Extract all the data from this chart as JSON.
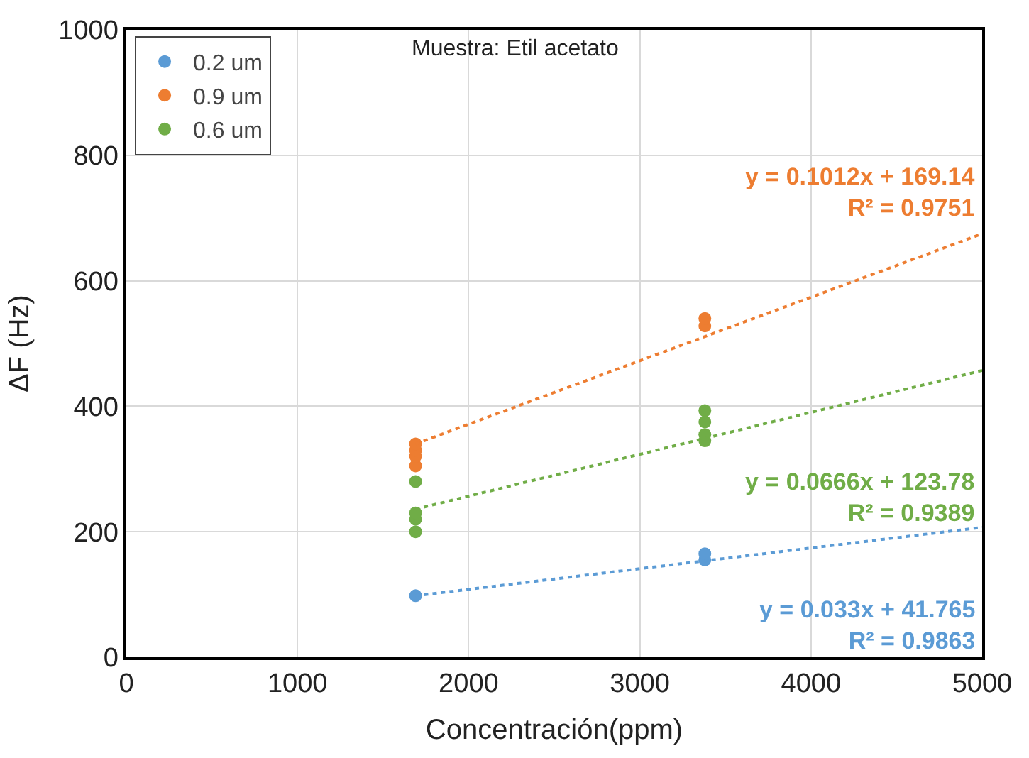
{
  "chart_data": {
    "type": "scatter",
    "xlabel": "Concentración(ppm)",
    "ylabel": "ΔF (Hz)",
    "xlim": [
      0,
      5000
    ],
    "xticks": [
      0,
      1000,
      2000,
      3000,
      4000,
      5000
    ],
    "ylim": [
      0,
      1000
    ],
    "yticks": [
      0,
      200,
      400,
      600,
      800,
      1000
    ],
    "grid": true,
    "legend": "top left",
    "series": [
      {
        "name": "0.2 um",
        "color": "#5b9bd5",
        "marker": "circle",
        "x": [
          1690,
          3380,
          3380
        ],
        "values": [
          98,
          155,
          165
        ]
      },
      {
        "name": "0.9 um",
        "color": "#ed7d31",
        "marker": "circle",
        "x": [
          1690,
          1690,
          1690,
          1690,
          3380,
          3380
        ],
        "values": [
          305,
          320,
          330,
          340,
          528,
          540
        ]
      },
      {
        "name": "0.6 um",
        "color": "#70ad47",
        "marker": "circle",
        "x": [
          1690,
          1690,
          1690,
          1690,
          3380,
          3380,
          3380,
          3380
        ],
        "values": [
          200,
          220,
          230,
          280,
          345,
          355,
          375,
          393
        ]
      },
      {
        "type": "line",
        "line_style": "dotted",
        "marker": "none",
        "color": "#5b9bd5",
        "x": [
          1690,
          5000
        ],
        "values": [
          98,
          207
        ]
      },
      {
        "type": "line",
        "line_style": "dotted",
        "marker": "none",
        "color": "#ed7d31",
        "x": [
          1690,
          5000
        ],
        "values": [
          340,
          675
        ]
      },
      {
        "type": "line",
        "line_style": "dotted",
        "marker": "none",
        "color": "#70ad47",
        "x": [
          1690,
          5000
        ],
        "values": [
          236,
          457
        ]
      }
    ],
    "annotations": [
      "Muestra: Etil acetato",
      "y = 0.033x + 41.765\nR² = 0.9863",
      "y = 0.1012x + 169.14\nR² = 0.9751",
      "y = 0.0666x + 123.78\nR² = 0.9389"
    ]
  }
}
